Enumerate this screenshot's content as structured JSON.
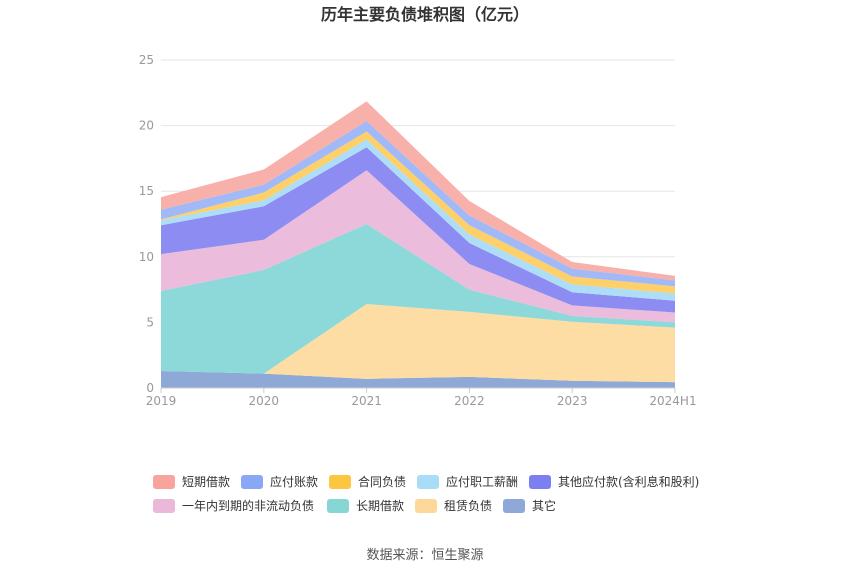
{
  "chart_data": {
    "type": "area",
    "stacked": true,
    "title": "历年主要负债堆积图（亿元）",
    "categories": [
      "2019",
      "2020",
      "2021",
      "2022",
      "2023",
      "2024H1"
    ],
    "ylim": [
      0,
      25
    ],
    "yticks": [
      0,
      5,
      10,
      15,
      20,
      25
    ],
    "grid": true,
    "legend_placement": "bottom",
    "series": [
      {
        "name": "其它",
        "color": "#8fa9d6",
        "values": [
          1.3,
          1.1,
          0.7,
          0.85,
          0.55,
          0.45
        ]
      },
      {
        "name": "租赁负债",
        "color": "#fddda3",
        "values": [
          0,
          0,
          5.7,
          4.95,
          4.5,
          4.15
        ]
      },
      {
        "name": "长期借款",
        "color": "#8dd9d9",
        "values": [
          6.1,
          7.9,
          6.1,
          1.7,
          0.45,
          0.4
        ]
      },
      {
        "name": "一年内到期的非流动负债",
        "color": "#ebbcdb",
        "values": [
          2.8,
          2.3,
          4.1,
          1.95,
          0.8,
          0.75
        ]
      },
      {
        "name": "其他应付款(含利息和股利)",
        "color": "#8c8cf2",
        "values": [
          2.2,
          2.55,
          1.75,
          1.6,
          1.0,
          0.9
        ]
      },
      {
        "name": "应付职工薪酬",
        "color": "#aeddf7",
        "values": [
          0.4,
          0.45,
          0.6,
          0.65,
          0.6,
          0.55
        ]
      },
      {
        "name": "合同负债",
        "color": "#fdd06a",
        "values": [
          0.05,
          0.6,
          0.6,
          0.7,
          0.6,
          0.55
        ]
      },
      {
        "name": "应付账款",
        "color": "#a2b9f7",
        "values": [
          0.75,
          0.6,
          0.8,
          0.75,
          0.6,
          0.45
        ]
      },
      {
        "name": "短期借款",
        "color": "#f8b0aa",
        "values": [
          0.95,
          1.15,
          1.5,
          1.1,
          0.5,
          0.35
        ]
      }
    ],
    "legend_order": [
      "短期借款",
      "应付账款",
      "合同负债",
      "应付职工薪酬",
      "其他应付款(含利息和股利)",
      "一年内到期的非流动负债",
      "长期借款",
      "租赁负债",
      "其它"
    ],
    "legend_colors": {
      "短期借款": "#f8a49c",
      "应付账款": "#8aa7f5",
      "合同负债": "#fcc640",
      "应付职工薪酬": "#a8dcf7",
      "其他应付款(含利息和股利)": "#7b7ff0",
      "一年内到期的非流动负债": "#ebb8d9",
      "长期借款": "#86d6d6",
      "租赁负债": "#fcd99a",
      "其它": "#8ea8d8"
    }
  },
  "footer": {
    "source": "数据来源：恒生聚源"
  }
}
